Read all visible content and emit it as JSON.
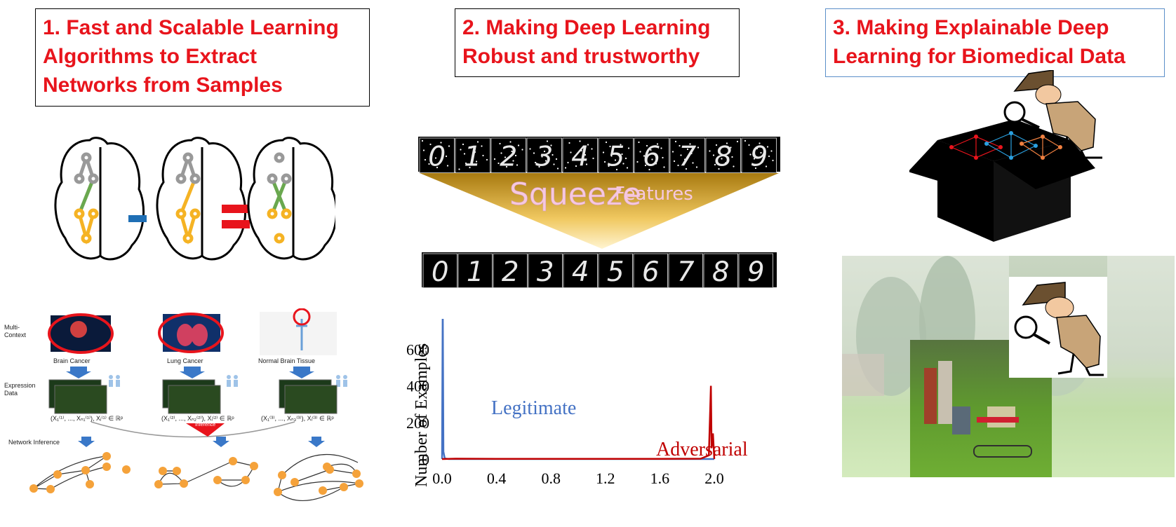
{
  "titles": {
    "section1": [
      "1. Fast and Scalable Learning",
      "Algorithms to Extract",
      "Networks from Samples"
    ],
    "section2": [
      "2. Making Deep Learning",
      "Robust and trustworthy"
    ],
    "section3": [
      "3. Making Explainable  Deep",
      "Learning for Biomedical Data"
    ]
  },
  "squeeze": {
    "word1": "Squeeze",
    "word2": "Features"
  },
  "digits": [
    "0",
    "1",
    "2",
    "3",
    "4",
    "5",
    "6",
    "7",
    "8",
    "9"
  ],
  "network_panel": {
    "multi_context": [
      "Multi-",
      "Context"
    ],
    "expression_data": [
      "Expression",
      "Data"
    ],
    "network_inference": "Network Inference",
    "contexts": [
      "Brain Cancer",
      "Lung Cancer",
      "Normal Brain Tissue"
    ],
    "inference_label": "Inference",
    "data_formulas": [
      "(X₁⁽¹⁾, ..., Xₙ₁⁽¹⁾), Xᵢ⁽¹⁾ ∈ ℝᵖ",
      "(X₁⁽²⁾, ..., Xₙ₂⁽²⁾), Xᵢ⁽²⁾ ∈ ℝᵖ",
      "(X₁⁽³⁾, ..., Xₙ₃⁽³⁾), Xᵢ⁽³⁾ ∈ ℝᵖ"
    ]
  },
  "colors": {
    "title_red": "#e8141c",
    "legit_blue": "#4472c4",
    "adv_red": "#c00000",
    "node_orange": "#f5a23a",
    "brain_gold": "#f5b324"
  },
  "chart_data": {
    "type": "line",
    "ylabel": "Number of Examples",
    "xlabel": "",
    "xlim": [
      0.0,
      2.0
    ],
    "ylim": [
      0,
      900
    ],
    "xticks": [
      "0.0",
      "0.4",
      "0.8",
      "1.2",
      "1.6",
      "2.0"
    ],
    "yticks": [
      "0",
      "200",
      "400",
      "600",
      "800"
    ],
    "series": [
      {
        "name": "Legitimate",
        "color": "#4472c4",
        "x": [
          0.0,
          0.005,
          0.01,
          0.02,
          0.05,
          0.5,
          1.0,
          1.5,
          1.95,
          2.0
        ],
        "y": [
          0,
          980,
          40,
          3,
          0,
          0,
          0,
          0,
          0,
          0
        ]
      },
      {
        "name": "Adversarial",
        "color": "#c00000",
        "x": [
          0.0,
          0.1,
          0.4,
          0.8,
          1.2,
          1.6,
          1.9,
          1.96,
          1.975,
          1.98,
          1.99,
          2.0
        ],
        "y": [
          0,
          2,
          1,
          1,
          1,
          1,
          2,
          20,
          400,
          60,
          140,
          0
        ]
      }
    ]
  }
}
